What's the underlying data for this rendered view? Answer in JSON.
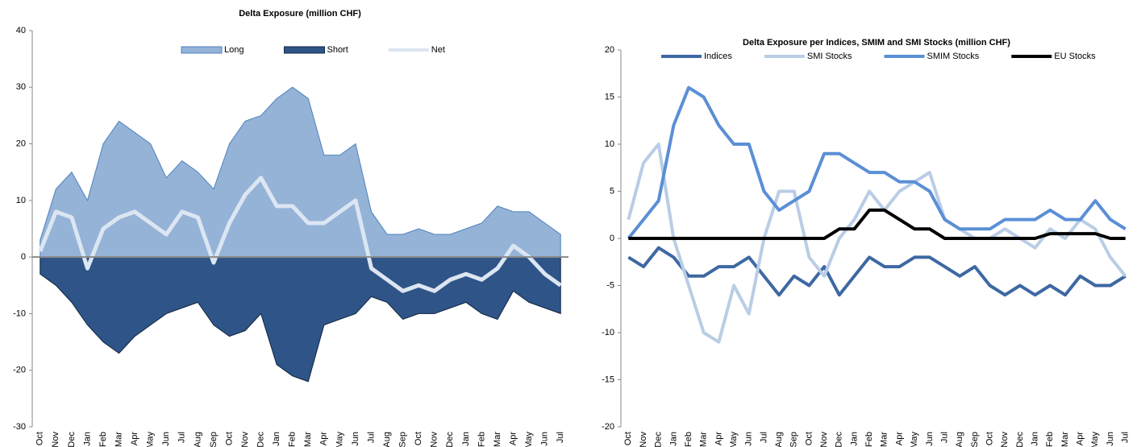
{
  "chart_data": [
    {
      "type": "area",
      "title": "Delta Exposure (million CHF)",
      "categories": [
        "Oct",
        "Nov",
        "Dec",
        "Jan",
        "Feb",
        "Mar",
        "Apr",
        "May",
        "Jun",
        "Jul",
        "Aug",
        "Sep",
        "Oct",
        "Nov",
        "Dec",
        "Jan",
        "Feb",
        "Mar",
        "Apr",
        "May",
        "Jun",
        "Jul",
        "Aug",
        "Sep",
        "Oct",
        "Nov",
        "Dec",
        "Jan",
        "Feb",
        "Mar",
        "Apr",
        "May",
        "Jun",
        "Jul"
      ],
      "series": [
        {
          "name": "Long",
          "color": "#95b3d7",
          "values": [
            3,
            12,
            15,
            10,
            20,
            24,
            22,
            20,
            14,
            17,
            15,
            12,
            20,
            24,
            25,
            28,
            30,
            28,
            18,
            18,
            20,
            8,
            4,
            4,
            5,
            4,
            4,
            5,
            6,
            9,
            8,
            8,
            6,
            4
          ]
        },
        {
          "name": "Short",
          "color": "#2f5488",
          "values": [
            -3,
            -5,
            -8,
            -12,
            -15,
            -17,
            -14,
            -12,
            -10,
            -9,
            -8,
            -12,
            -14,
            -13,
            -10,
            -19,
            -21,
            -22,
            -12,
            -11,
            -10,
            -7,
            -8,
            -11,
            -10,
            -10,
            -9,
            -8,
            -10,
            -11,
            -6,
            -8,
            -9,
            -10
          ]
        },
        {
          "name": "Net",
          "color": "#dce6f2",
          "type": "line",
          "values": [
            1,
            8,
            7,
            -2,
            5,
            7,
            8,
            6,
            4,
            8,
            7,
            -1,
            6,
            11,
            14,
            9,
            9,
            6,
            6,
            8,
            10,
            -2,
            -4,
            -6,
            -5,
            -6,
            -4,
            -3,
            -4,
            -2,
            2,
            0,
            -3,
            -5
          ]
        }
      ],
      "ylim": [
        -30,
        40
      ],
      "yticks": [
        -30,
        -20,
        -10,
        0,
        10,
        20,
        30,
        40
      ]
    },
    {
      "type": "line",
      "title": "Delta Exposure per Indices, SMIM and SMI Stocks (million CHF)",
      "categories": [
        "Oct",
        "Nov",
        "Dec",
        "Jan",
        "Feb",
        "Mar",
        "Apr",
        "May",
        "Jun",
        "Jul",
        "Aug",
        "Sep",
        "Oct",
        "Nov",
        "Dec",
        "Jan",
        "Feb",
        "Mar",
        "Apr",
        "May",
        "Jun",
        "Jul",
        "Aug",
        "Sep",
        "Oct",
        "Nov",
        "Dec",
        "Jan",
        "Feb",
        "Mar",
        "Apr",
        "May",
        "Jun",
        "Jul"
      ],
      "series": [
        {
          "name": "Indices",
          "color": "#3d68a3",
          "values": [
            -2,
            -3,
            -1,
            -2,
            -4,
            -4,
            -3,
            -3,
            -2,
            -4,
            -6,
            -4,
            -5,
            -3,
            -6,
            -4,
            -2,
            -3,
            -3,
            -2,
            -2,
            -3,
            -4,
            -3,
            -5,
            -6,
            -5,
            -6,
            -5,
            -6,
            -4,
            -5,
            -5,
            -4
          ]
        },
        {
          "name": "SMI Stocks",
          "color": "#b9cde5",
          "values": [
            2,
            8,
            10,
            0,
            -5,
            -10,
            -11,
            -5,
            -8,
            0,
            5,
            5,
            -2,
            -4,
            0,
            2,
            5,
            3,
            5,
            6,
            7,
            2,
            1,
            0,
            0,
            1,
            0,
            -1,
            1,
            0,
            2,
            1,
            -2,
            -4
          ]
        },
        {
          "name": "SMIM Stocks",
          "color": "#5b8fd6",
          "values": [
            0,
            2,
            4,
            12,
            16,
            15,
            12,
            10,
            10,
            5,
            3,
            4,
            5,
            9,
            9,
            8,
            7,
            7,
            6,
            6,
            5,
            2,
            1,
            1,
            1,
            2,
            2,
            2,
            3,
            2,
            2,
            4,
            2,
            1
          ]
        },
        {
          "name": "EU Stocks",
          "color": "#000000",
          "values": [
            0,
            0,
            0,
            0,
            0,
            0,
            0,
            0,
            0,
            0,
            0,
            0,
            0,
            0,
            1,
            1,
            3,
            3,
            2,
            1,
            1,
            0,
            0,
            0,
            0,
            0,
            0,
            0,
            0.5,
            0.5,
            0.5,
            0.5,
            0,
            0
          ]
        }
      ],
      "ylim": [
        -20,
        20
      ],
      "yticks": [
        -20,
        -15,
        -10,
        -5,
        0,
        5,
        10,
        15,
        20
      ]
    }
  ]
}
